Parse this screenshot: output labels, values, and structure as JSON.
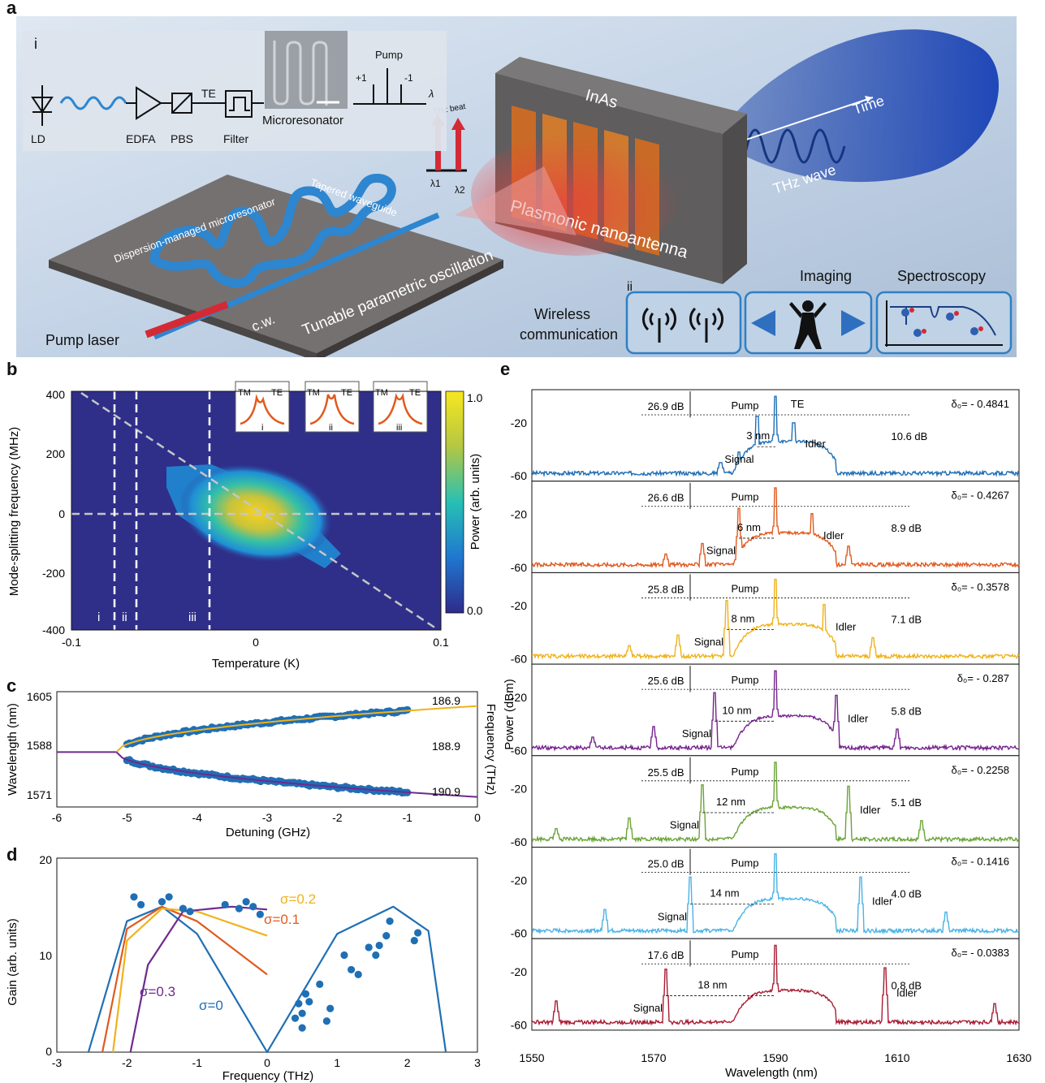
{
  "panels": {
    "a": "a",
    "b": "b",
    "c": "c",
    "d": "d",
    "e": "e"
  },
  "panel_a": {
    "inset_i": {
      "label": "i",
      "blocks": [
        "LD",
        "EDFA",
        "PBS",
        "Filter",
        "Microresonator"
      ],
      "te": "TE",
      "pump": "Pump",
      "plus1": "+1",
      "minus1": "-1",
      "lambda": "λ"
    },
    "thz_beat": "THz beat",
    "lambda1": "λ1",
    "lambda2": "λ2",
    "inas": "InAs",
    "time": "Time",
    "thz_wave": "THz wave",
    "plasmonic": "Plasmonic nanoantenna",
    "dispersion": "Dispersion-managed microresonator",
    "tapered": "Tapered waveguide",
    "tunable": "Tunable parametric oscillation",
    "cw": "c.w.",
    "pump_laser": "Pump laser",
    "ii": "ii",
    "imaging": "Imaging",
    "spectroscopy": "Spectroscopy",
    "wireless1": "Wireless",
    "wireless2": "communication",
    "colors": {
      "bg": "#c6d6e8",
      "waveguide": "#2d86cf",
      "chip": "#6e6a66",
      "pump": "#d42a35",
      "thz": "#2a59b8",
      "box_border": "#2f7fc4"
    }
  },
  "panel_b": {
    "ylabel": "Mode-splitting frequency (MHz)",
    "xlabel": "Temperature  (K)",
    "yticks": [
      "400",
      "200",
      "0",
      "-200",
      "-400"
    ],
    "xticks": [
      "-0.1",
      "0",
      "0.1"
    ],
    "colorbar_label": "Power (arb. units)",
    "colorbar_ticks": [
      "1.0",
      "0.0"
    ],
    "region_labels": [
      "i",
      "ii",
      "iii"
    ],
    "inset_labels": {
      "tm": "TM",
      "te": "TE",
      "i": "i",
      "ii": "ii",
      "iii": "iii"
    }
  },
  "panel_c": {
    "ylabel": "Wavelength (nm)",
    "ylabel_right": "Frequency (THz)",
    "xlabel": "Detuning (GHz)",
    "yticks": [
      "1605",
      "1588",
      "1571"
    ],
    "right_ticks": [
      "186.9",
      "188.9",
      "190.9"
    ],
    "xticks": [
      "-6",
      "-5",
      "-4",
      "-3",
      "-2",
      "-1",
      "0"
    ]
  },
  "panel_d": {
    "ylabel": "Gain (arb. units)",
    "xlabel": "Frequency (THz)",
    "yticks": [
      "20",
      "10",
      "0"
    ],
    "xticks": [
      "-3",
      "-2",
      "-1",
      "0",
      "1",
      "2",
      "3"
    ],
    "curves": [
      {
        "label": "σ=0",
        "color": "#1f6fb5"
      },
      {
        "label": "σ=0.1",
        "color": "#e05a1e"
      },
      {
        "label": "σ=0.2",
        "color": "#f0b21c"
      },
      {
        "label": "σ=0.3",
        "color": "#6e2a8e"
      }
    ]
  },
  "panel_e": {
    "ylabel": "Power (dBm)",
    "xlabel": "Wavelength (nm)",
    "xticks": [
      "1550",
      "1570",
      "1590",
      "1610",
      "1630"
    ],
    "yticks": [
      "-20",
      "-60"
    ],
    "pump": "Pump",
    "signal": "Signal",
    "idler": "Idler",
    "te": "TE",
    "spectra": [
      {
        "color": "#1f6fb5",
        "delta": "δ₀= - 0.4841",
        "db_left": "26.9 dB",
        "db_right": "10.6 dB",
        "sep": "3 nm",
        "sep_nm": 3
      },
      {
        "color": "#e05a1e",
        "delta": "δ₀= - 0.4267",
        "db_left": "26.6 dB",
        "db_right": "8.9 dB",
        "sep": "6 nm",
        "sep_nm": 6
      },
      {
        "color": "#f0b21c",
        "delta": "δ₀= - 0.3578",
        "db_left": "25.8 dB",
        "db_right": "7.1 dB",
        "sep": "8 nm",
        "sep_nm": 8
      },
      {
        "color": "#76248d",
        "delta": "δ₀= - 0.287",
        "db_left": "25.6 dB",
        "db_right": "5.8 dB",
        "sep": "10 nm",
        "sep_nm": 10
      },
      {
        "color": "#6aa437",
        "delta": "δ₀= - 0.2258",
        "db_left": "25.5 dB",
        "db_right": "5.1 dB",
        "sep": "12 nm",
        "sep_nm": 12
      },
      {
        "color": "#49b3e6",
        "delta": "δ₀= - 0.1416",
        "db_left": "25.0 dB",
        "db_right": "4.0 dB",
        "sep": "14 nm",
        "sep_nm": 14
      },
      {
        "color": "#a81d34",
        "delta": "δ₀= - 0.0383",
        "db_left": "17.6 dB",
        "db_right": "0.8 dB",
        "sep": "18 nm",
        "sep_nm": 18
      }
    ]
  },
  "chart_data": [
    {
      "type": "heatmap",
      "panel": "b",
      "xlabel": "Temperature  (K)",
      "ylabel": "Mode-splitting frequency (MHz)",
      "xlim": [
        -0.1,
        0.1
      ],
      "ylim": [
        -400,
        400
      ],
      "colorbar_range": [
        0.0,
        1.0
      ],
      "dashed_vertical_lines_K": [
        -0.076,
        -0.064,
        -0.026
      ]
    },
    {
      "type": "scatter",
      "panel": "c",
      "xlabel": "Detuning (GHz)",
      "ylabel": "Wavelength (nm)",
      "xlim": [
        -6,
        0
      ],
      "ylim": [
        1568,
        1610
      ],
      "branch_start_GHz": -5.15,
      "series": [
        {
          "name": "upper",
          "x": [
            -5,
            -4,
            -3,
            -2,
            -1
          ],
          "y": [
            1590.5,
            1596.5,
            1599.5,
            1602.5,
            1604.5
          ],
          "color": "#f0b21c"
        },
        {
          "name": "lower",
          "x": [
            -5,
            -4,
            -3,
            -2,
            -1
          ],
          "y": [
            1585,
            1580.5,
            1577,
            1574,
            1571.5
          ],
          "color": "#6e2a8e"
        }
      ]
    },
    {
      "type": "line",
      "panel": "d",
      "xlabel": "Frequency (THz)",
      "ylabel": "Gain (arb. units)",
      "xlim": [
        -3,
        3
      ],
      "ylim": [
        0,
        20
      ],
      "series": [
        {
          "name": "σ=0",
          "x": [
            -2.55,
            -2,
            -1.5,
            -1,
            0,
            1,
            1.8,
            2.3,
            2.55
          ],
          "y": [
            0,
            13.5,
            15,
            12.2,
            0,
            12.2,
            15,
            12.5,
            0
          ]
        },
        {
          "name": "σ=0.1",
          "x": [
            -2.35,
            -2,
            -1.5,
            -1,
            0
          ],
          "y": [
            0,
            12.7,
            15,
            13.5,
            8
          ]
        },
        {
          "name": "σ=0.2",
          "x": [
            -2.2,
            -2,
            -1.5,
            -1,
            0
          ],
          "y": [
            0,
            11.5,
            14.8,
            14.5,
            12
          ]
        },
        {
          "name": "σ=0.3",
          "x": [
            -1.95,
            -1.7,
            -1.2,
            -0.5,
            0
          ],
          "y": [
            0,
            9,
            14.5,
            15,
            14.7
          ]
        }
      ]
    },
    {
      "type": "line",
      "panel": "e",
      "xlabel": "Wavelength (nm)",
      "ylabel": "Power (dBm)",
      "xlim": [
        1550,
        1630
      ],
      "ylim": [
        -60,
        0
      ],
      "pump_wavelength_nm": 1590
    }
  ]
}
